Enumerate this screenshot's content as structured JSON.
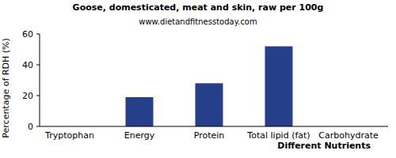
{
  "chart_data": {
    "type": "bar",
    "title": "Goose, domesticated, meat and skin, raw per 100g",
    "subtitle": "www.dietandfitnesstoday.com",
    "x_label": "Different Nutrients",
    "y_label": "Percentage of RDH (%)",
    "categories": [
      "Tryptophan",
      "Energy",
      "Protein",
      "Total lipid (fat)",
      "Carbohydrate"
    ],
    "values": [
      0,
      19,
      28,
      52,
      0
    ],
    "color": "#253f8b",
    "ylim": [
      0,
      60
    ],
    "yticks": [
      0,
      20,
      40,
      60
    ],
    "grid": false
  }
}
